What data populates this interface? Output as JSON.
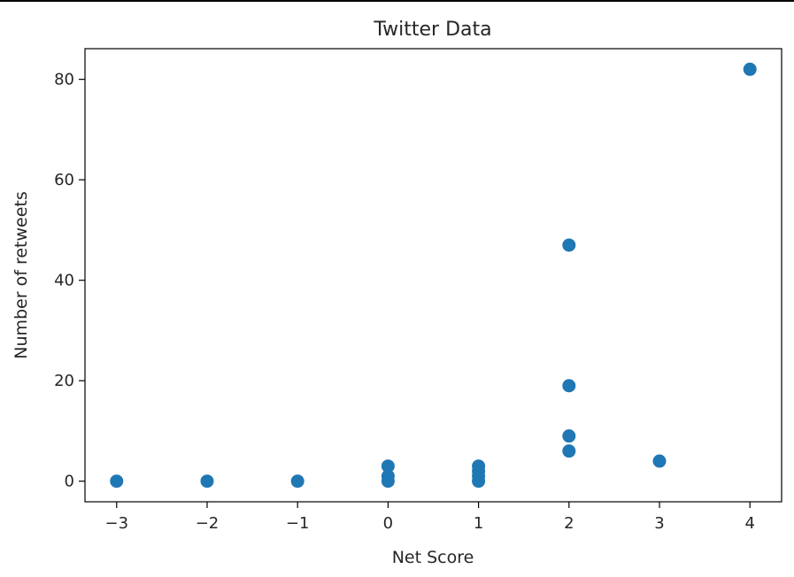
{
  "chart_data": {
    "type": "scatter",
    "title": "Twitter Data",
    "xlabel": "Net Score",
    "ylabel": "Number of retweets",
    "xlim": [
      -3.35,
      4.35
    ],
    "ylim": [
      -4.1,
      86.1
    ],
    "xticks": [
      -3,
      -2,
      -1,
      0,
      1,
      2,
      3,
      4
    ],
    "xtick_labels": [
      "−3",
      "−2",
      "−1",
      "0",
      "1",
      "2",
      "3",
      "4"
    ],
    "yticks": [
      0,
      20,
      40,
      60,
      80
    ],
    "ytick_labels": [
      "0",
      "20",
      "40",
      "60",
      "80"
    ],
    "grid": false,
    "legend": "none",
    "marker_color": "#1f77b4",
    "points": [
      {
        "x": -3,
        "y": 0
      },
      {
        "x": -2,
        "y": 0
      },
      {
        "x": -1,
        "y": 0
      },
      {
        "x": 0,
        "y": 0
      },
      {
        "x": 0,
        "y": 1
      },
      {
        "x": 0,
        "y": 3
      },
      {
        "x": 1,
        "y": 0
      },
      {
        "x": 1,
        "y": 1
      },
      {
        "x": 1,
        "y": 2
      },
      {
        "x": 1,
        "y": 3
      },
      {
        "x": 2,
        "y": 6
      },
      {
        "x": 2,
        "y": 9
      },
      {
        "x": 2,
        "y": 19
      },
      {
        "x": 2,
        "y": 47
      },
      {
        "x": 3,
        "y": 4
      },
      {
        "x": 4,
        "y": 82
      }
    ]
  }
}
